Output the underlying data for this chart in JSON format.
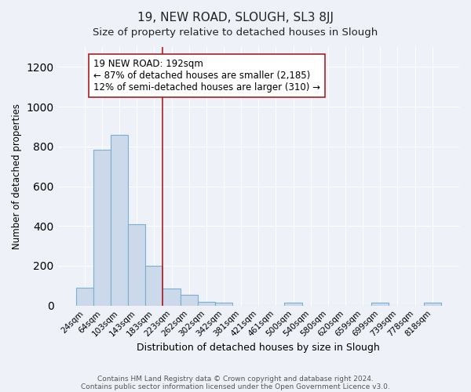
{
  "title": "19, NEW ROAD, SLOUGH, SL3 8JJ",
  "subtitle": "Size of property relative to detached houses in Slough",
  "xlabel": "Distribution of detached houses by size in Slough",
  "ylabel": "Number of detached properties",
  "footnote1": "Contains HM Land Registry data © Crown copyright and database right 2024.",
  "footnote2": "Contains public sector information licensed under the Open Government Licence v3.0.",
  "categories": [
    "24sqm",
    "64sqm",
    "103sqm",
    "143sqm",
    "183sqm",
    "223sqm",
    "262sqm",
    "302sqm",
    "342sqm",
    "381sqm",
    "421sqm",
    "461sqm",
    "500sqm",
    "540sqm",
    "580sqm",
    "620sqm",
    "659sqm",
    "699sqm",
    "739sqm",
    "778sqm",
    "818sqm"
  ],
  "values": [
    90,
    785,
    860,
    410,
    200,
    85,
    55,
    20,
    13,
    0,
    0,
    0,
    13,
    0,
    0,
    0,
    0,
    13,
    0,
    0,
    13
  ],
  "bar_color": "#ccd9ea",
  "bar_edge_color": "#7aafd4",
  "bar_linewidth": 0.8,
  "vline_x_idx": 4,
  "vline_color": "#a82020",
  "vline_linewidth": 1.2,
  "annotation_line1": "19 NEW ROAD: 192sqm",
  "annotation_line2": "← 87% of detached houses are smaller (2,185)",
  "annotation_line3": "12% of semi-detached houses are larger (310) →",
  "annotation_box_color": "#ffffff",
  "annotation_box_edge": "#a82020",
  "annotation_fontsize": 8.5,
  "ylim": [
    0,
    1300
  ],
  "yticks": [
    0,
    200,
    400,
    600,
    800,
    1000,
    1200
  ],
  "background_color": "#eef2f8",
  "plot_bg_color": "#eef2f8",
  "grid_color": "#ffffff",
  "title_fontsize": 11,
  "subtitle_fontsize": 9.5,
  "xlabel_fontsize": 9,
  "ylabel_fontsize": 8.5,
  "tick_fontsize": 7.5
}
